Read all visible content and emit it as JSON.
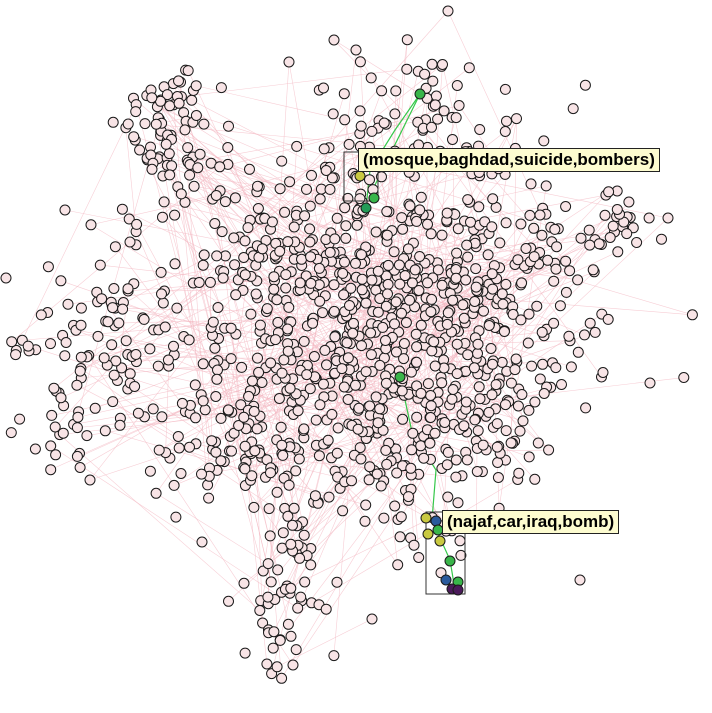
{
  "labels": {
    "cluster_a": "(mosque,baghdad,suicide,bombers)",
    "cluster_b": "(najaf,car,iraq,bomb)"
  },
  "colors": {
    "node_fill": "#f8e4e6",
    "node_stroke": "#1a1a1a",
    "edge": "#f4b9c3",
    "highlight_edge": "#35c84a",
    "node_green": "#39b54a",
    "node_darkgreen": "#239b57",
    "node_blue": "#2a5a9c",
    "node_yellow": "#c9c941",
    "node_purple": "#4b1a5b"
  }
}
